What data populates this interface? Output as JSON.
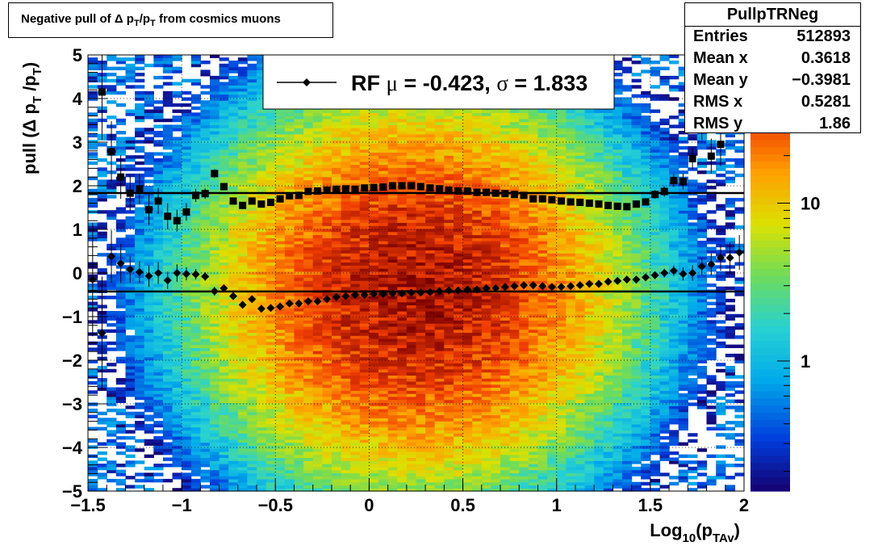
{
  "title": "Negative pull of Δ p",
  "title_sub1": "T",
  "title_mid": "/p",
  "title_sub2": "T",
  "title_tail": " from cosmics muons",
  "stats": {
    "name": "PullpTRNeg",
    "rows": [
      {
        "label": "Entries",
        "value": "512893"
      },
      {
        "label": "Mean x",
        "value": "0.3618"
      },
      {
        "label": "Mean y",
        "value": "−0.3981"
      },
      {
        "label": "RMS x",
        "value": "0.5281"
      },
      {
        "label": "RMS y",
        "value": "1.86"
      }
    ]
  },
  "legend": {
    "prefix": "RF ",
    "mu": "μ",
    "mid": " = -0.423, ",
    "sigma": "σ",
    "tail": " =   1.833"
  },
  "colors": {
    "sigma_markers": "#000000",
    "mean_markers": "#000000",
    "fit_lines": "#000000"
  },
  "chart_data": {
    "type": "heatmap",
    "xlabel_main": "Log",
    "xlabel_sub1": "10",
    "xlabel_mid": "(p",
    "xlabel_sub2": "TAv",
    "xlabel_tail": ")",
    "ylabel_main": "pull (Δ p",
    "ylabel_sub1": "T",
    "ylabel_mid": " /p",
    "ylabel_sub2": "T",
    "ylabel_tail": ")",
    "xlim": [
      -1.5,
      2
    ],
    "ylim": [
      -5,
      5
    ],
    "xticks": [
      {
        "v": -1.5,
        "t": "−1.5"
      },
      {
        "v": -1,
        "t": "−1"
      },
      {
        "v": -0.5,
        "t": "−0.5"
      },
      {
        "v": 0,
        "t": "0"
      },
      {
        "v": 0.5,
        "t": "0.5"
      },
      {
        "v": 1,
        "t": "1"
      },
      {
        "v": 1.5,
        "t": "1.5"
      },
      {
        "v": 2,
        "t": "2"
      }
    ],
    "yticks": [
      {
        "v": -5,
        "t": "−5"
      },
      {
        "v": -4,
        "t": "−4"
      },
      {
        "v": -3,
        "t": "−3"
      },
      {
        "v": -2,
        "t": "−2"
      },
      {
        "v": -1,
        "t": "−1"
      },
      {
        "v": 0,
        "t": "0"
      },
      {
        "v": 1,
        "t": "1"
      },
      {
        "v": 2,
        "t": "2"
      },
      {
        "v": 3,
        "t": "3"
      },
      {
        "v": 4,
        "t": "4"
      },
      {
        "v": 5,
        "t": "5"
      }
    ],
    "grid": true,
    "colorbar": {
      "scale": "log",
      "labels": [
        {
          "v": 1,
          "t": "1"
        },
        {
          "v": 10,
          "t": "10"
        }
      ],
      "range": [
        0.15,
        80
      ]
    },
    "fit_mean": -0.423,
    "fit_sigma": 1.833,
    "mean_points": {
      "x": [
        -1.475,
        -1.425,
        -1.375,
        -1.325,
        -1.275,
        -1.225,
        -1.175,
        -1.125,
        -1.075,
        -1.025,
        -0.975,
        -0.925,
        -0.875,
        -0.825,
        -0.775,
        -0.725,
        -0.675,
        -0.625,
        -0.575,
        -0.525,
        -0.475,
        -0.425,
        -0.375,
        -0.325,
        -0.275,
        -0.225,
        -0.175,
        -0.125,
        -0.075,
        -0.025,
        0.025,
        0.075,
        0.125,
        0.175,
        0.225,
        0.275,
        0.325,
        0.375,
        0.425,
        0.475,
        0.525,
        0.575,
        0.625,
        0.675,
        0.725,
        0.775,
        0.825,
        0.875,
        0.925,
        0.975,
        1.025,
        1.075,
        1.125,
        1.175,
        1.225,
        1.275,
        1.325,
        1.375,
        1.425,
        1.475,
        1.525,
        1.575,
        1.625,
        1.675,
        1.725,
        1.775,
        1.825,
        1.875,
        1.925,
        1.975
      ],
      "y": [
        -0.15,
        -1.38,
        0.38,
        0.22,
        0.08,
        0.02,
        -0.07,
        0.0,
        -0.17,
        0.0,
        -0.02,
        -0.03,
        -0.08,
        -0.42,
        -0.35,
        -0.53,
        -0.73,
        -0.6,
        -0.82,
        -0.8,
        -0.77,
        -0.7,
        -0.7,
        -0.65,
        -0.65,
        -0.6,
        -0.55,
        -0.53,
        -0.5,
        -0.5,
        -0.48,
        -0.48,
        -0.47,
        -0.47,
        -0.45,
        -0.45,
        -0.44,
        -0.42,
        -0.4,
        -0.4,
        -0.38,
        -0.38,
        -0.35,
        -0.35,
        -0.32,
        -0.3,
        -0.28,
        -0.28,
        -0.3,
        -0.32,
        -0.32,
        -0.3,
        -0.28,
        -0.25,
        -0.25,
        -0.2,
        -0.18,
        -0.15,
        -0.15,
        -0.1,
        -0.05,
        0.0,
        0.05,
        -0.02,
        0.0,
        0.15,
        0.2,
        0.35,
        0.35,
        0.47
      ],
      "err": [
        1.3,
        1.3,
        0.6,
        0.45,
        0.3,
        0.25,
        0.25,
        0.25,
        0.2,
        0.2,
        0.15,
        0.12,
        0.1,
        0.1,
        0.08,
        0.07,
        0.06,
        0.05,
        0.05,
        0.04,
        0.03,
        0.03,
        0.03,
        0.03,
        0.03,
        0.03,
        0.02,
        0.02,
        0.02,
        0.02,
        0.02,
        0.02,
        0.02,
        0.02,
        0.02,
        0.02,
        0.02,
        0.02,
        0.02,
        0.02,
        0.02,
        0.02,
        0.02,
        0.02,
        0.02,
        0.02,
        0.03,
        0.03,
        0.03,
        0.03,
        0.03,
        0.03,
        0.03,
        0.04,
        0.04,
        0.04,
        0.05,
        0.05,
        0.06,
        0.07,
        0.08,
        0.1,
        0.12,
        0.15,
        0.18,
        0.2,
        0.25,
        0.3,
        0.35,
        0.4
      ]
    },
    "sigma_points": {
      "x": [
        -1.425,
        -1.375,
        -1.325,
        -1.275,
        -1.225,
        -1.175,
        -1.125,
        -1.075,
        -1.025,
        -0.975,
        -0.925,
        -0.875,
        -0.825,
        -0.775,
        -0.725,
        -0.675,
        -0.625,
        -0.575,
        -0.525,
        -0.475,
        -0.425,
        -0.375,
        -0.325,
        -0.275,
        -0.225,
        -0.175,
        -0.125,
        -0.075,
        -0.025,
        0.025,
        0.075,
        0.125,
        0.175,
        0.225,
        0.275,
        0.325,
        0.375,
        0.425,
        0.475,
        0.525,
        0.575,
        0.625,
        0.675,
        0.725,
        0.775,
        0.825,
        0.875,
        0.925,
        0.975,
        1.025,
        1.075,
        1.125,
        1.175,
        1.225,
        1.275,
        1.325,
        1.375,
        1.425,
        1.475,
        1.525,
        1.575,
        1.625,
        1.675,
        1.725,
        1.775,
        1.825,
        1.875,
        1.925,
        1.975
      ],
      "y": [
        4.15,
        2.78,
        2.2,
        1.83,
        1.93,
        1.45,
        1.65,
        1.3,
        1.2,
        1.4,
        1.78,
        1.82,
        2.28,
        1.98,
        1.65,
        1.55,
        1.65,
        1.58,
        1.62,
        1.7,
        1.77,
        1.78,
        1.87,
        1.88,
        1.9,
        1.92,
        1.93,
        1.92,
        1.95,
        1.96,
        1.97,
        2.0,
        2.0,
        2.0,
        1.98,
        1.95,
        1.93,
        1.9,
        1.88,
        1.88,
        1.85,
        1.85,
        1.83,
        1.82,
        1.8,
        1.78,
        1.7,
        1.7,
        1.68,
        1.65,
        1.63,
        1.62,
        1.6,
        1.58,
        1.55,
        1.53,
        1.52,
        1.58,
        1.63,
        1.8,
        1.87,
        2.12,
        2.1,
        2.62,
        3.35,
        2.68,
        2.95,
        0,
        0
      ],
      "err": [
        1.1,
        0.7,
        0.5,
        0.4,
        0.35,
        0.35,
        0.3,
        0.3,
        0.25,
        0.2,
        0.15,
        0.12,
        0.1,
        0.08,
        0.07,
        0.06,
        0.05,
        0.05,
        0.04,
        0.04,
        0.03,
        0.03,
        0.03,
        0.03,
        0.02,
        0.02,
        0.02,
        0.02,
        0.02,
        0.02,
        0.02,
        0.02,
        0.02,
        0.02,
        0.02,
        0.02,
        0.02,
        0.02,
        0.02,
        0.02,
        0.02,
        0.02,
        0.02,
        0.03,
        0.03,
        0.03,
        0.03,
        0.03,
        0.03,
        0.03,
        0.03,
        0.04,
        0.04,
        0.04,
        0.05,
        0.05,
        0.06,
        0.07,
        0.08,
        0.1,
        0.12,
        0.15,
        0.18,
        0.25,
        0.3,
        0.4,
        0.5,
        0,
        0
      ]
    }
  }
}
